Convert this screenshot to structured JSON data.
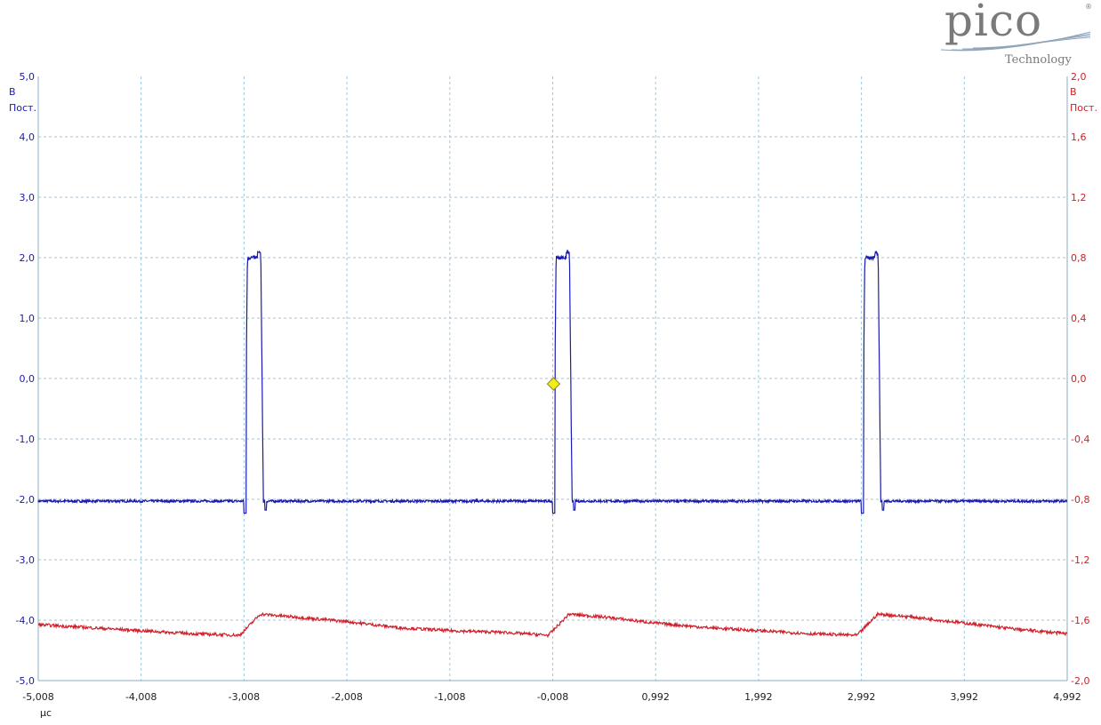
{
  "logo": {
    "word": "pico",
    "sub": "Technology",
    "reg": "®"
  },
  "chart_data": {
    "type": "line",
    "x_unit": "µс",
    "x_ticks": [
      "-5,008",
      "-4,008",
      "-3,008",
      "-2,008",
      "-1,008",
      "-0,008",
      "0,992",
      "1,992",
      "2,992",
      "3,992",
      "4,992"
    ],
    "xlim": [
      -5.008,
      4.992
    ],
    "left_axis": {
      "unit": "В",
      "coupling": "Пост.",
      "ticks": [
        "5,0",
        "4,0",
        "3,0",
        "2,0",
        "1,0",
        "0,0",
        "-1,0",
        "-2,0",
        "-3,0",
        "-4,0",
        "-5,0"
      ],
      "ylim": [
        -5.0,
        5.0
      ],
      "color": "#1a1ab0"
    },
    "right_axis": {
      "unit": "В",
      "coupling": "Пост.",
      "ticks": [
        "2,0",
        "1,6",
        "1,2",
        "0,8",
        "0,4",
        "0,0",
        "-0,4",
        "-0,8",
        "-1,2",
        "-1,6",
        "-2,0"
      ],
      "ylim": [
        -2.0,
        2.0
      ],
      "color": "#d0202a"
    },
    "series": [
      {
        "axis": "left",
        "color": "#1a1ab0",
        "baseline": -2.03,
        "high": 2.0,
        "pulses": [
          {
            "start": -3.0,
            "end": -2.82
          },
          {
            "start": 0.0,
            "end": 0.18
          },
          {
            "start": 3.0,
            "end": 3.18
          }
        ]
      },
      {
        "axis": "right",
        "color": "#d0202a",
        "points": [
          [
            -5.008,
            -1.63
          ],
          [
            -4.5,
            -1.65
          ],
          [
            -4.0,
            -1.67
          ],
          [
            -3.5,
            -1.69
          ],
          [
            -3.05,
            -1.7
          ],
          [
            -2.85,
            -1.56
          ],
          [
            -2.5,
            -1.58
          ],
          [
            -2.0,
            -1.61
          ],
          [
            -1.5,
            -1.65
          ],
          [
            -1.0,
            -1.67
          ],
          [
            -0.5,
            -1.68
          ],
          [
            -0.05,
            -1.7
          ],
          [
            0.15,
            -1.56
          ],
          [
            0.5,
            -1.58
          ],
          [
            1.0,
            -1.62
          ],
          [
            1.5,
            -1.65
          ],
          [
            2.0,
            -1.67
          ],
          [
            2.5,
            -1.69
          ],
          [
            2.95,
            -1.7
          ],
          [
            3.15,
            -1.56
          ],
          [
            3.5,
            -1.58
          ],
          [
            4.0,
            -1.62
          ],
          [
            4.5,
            -1.66
          ],
          [
            4.992,
            -1.69
          ]
        ]
      }
    ],
    "trigger": {
      "x": 0.0,
      "y": -0.09,
      "color": "#f2ec1a"
    },
    "grid": true
  }
}
